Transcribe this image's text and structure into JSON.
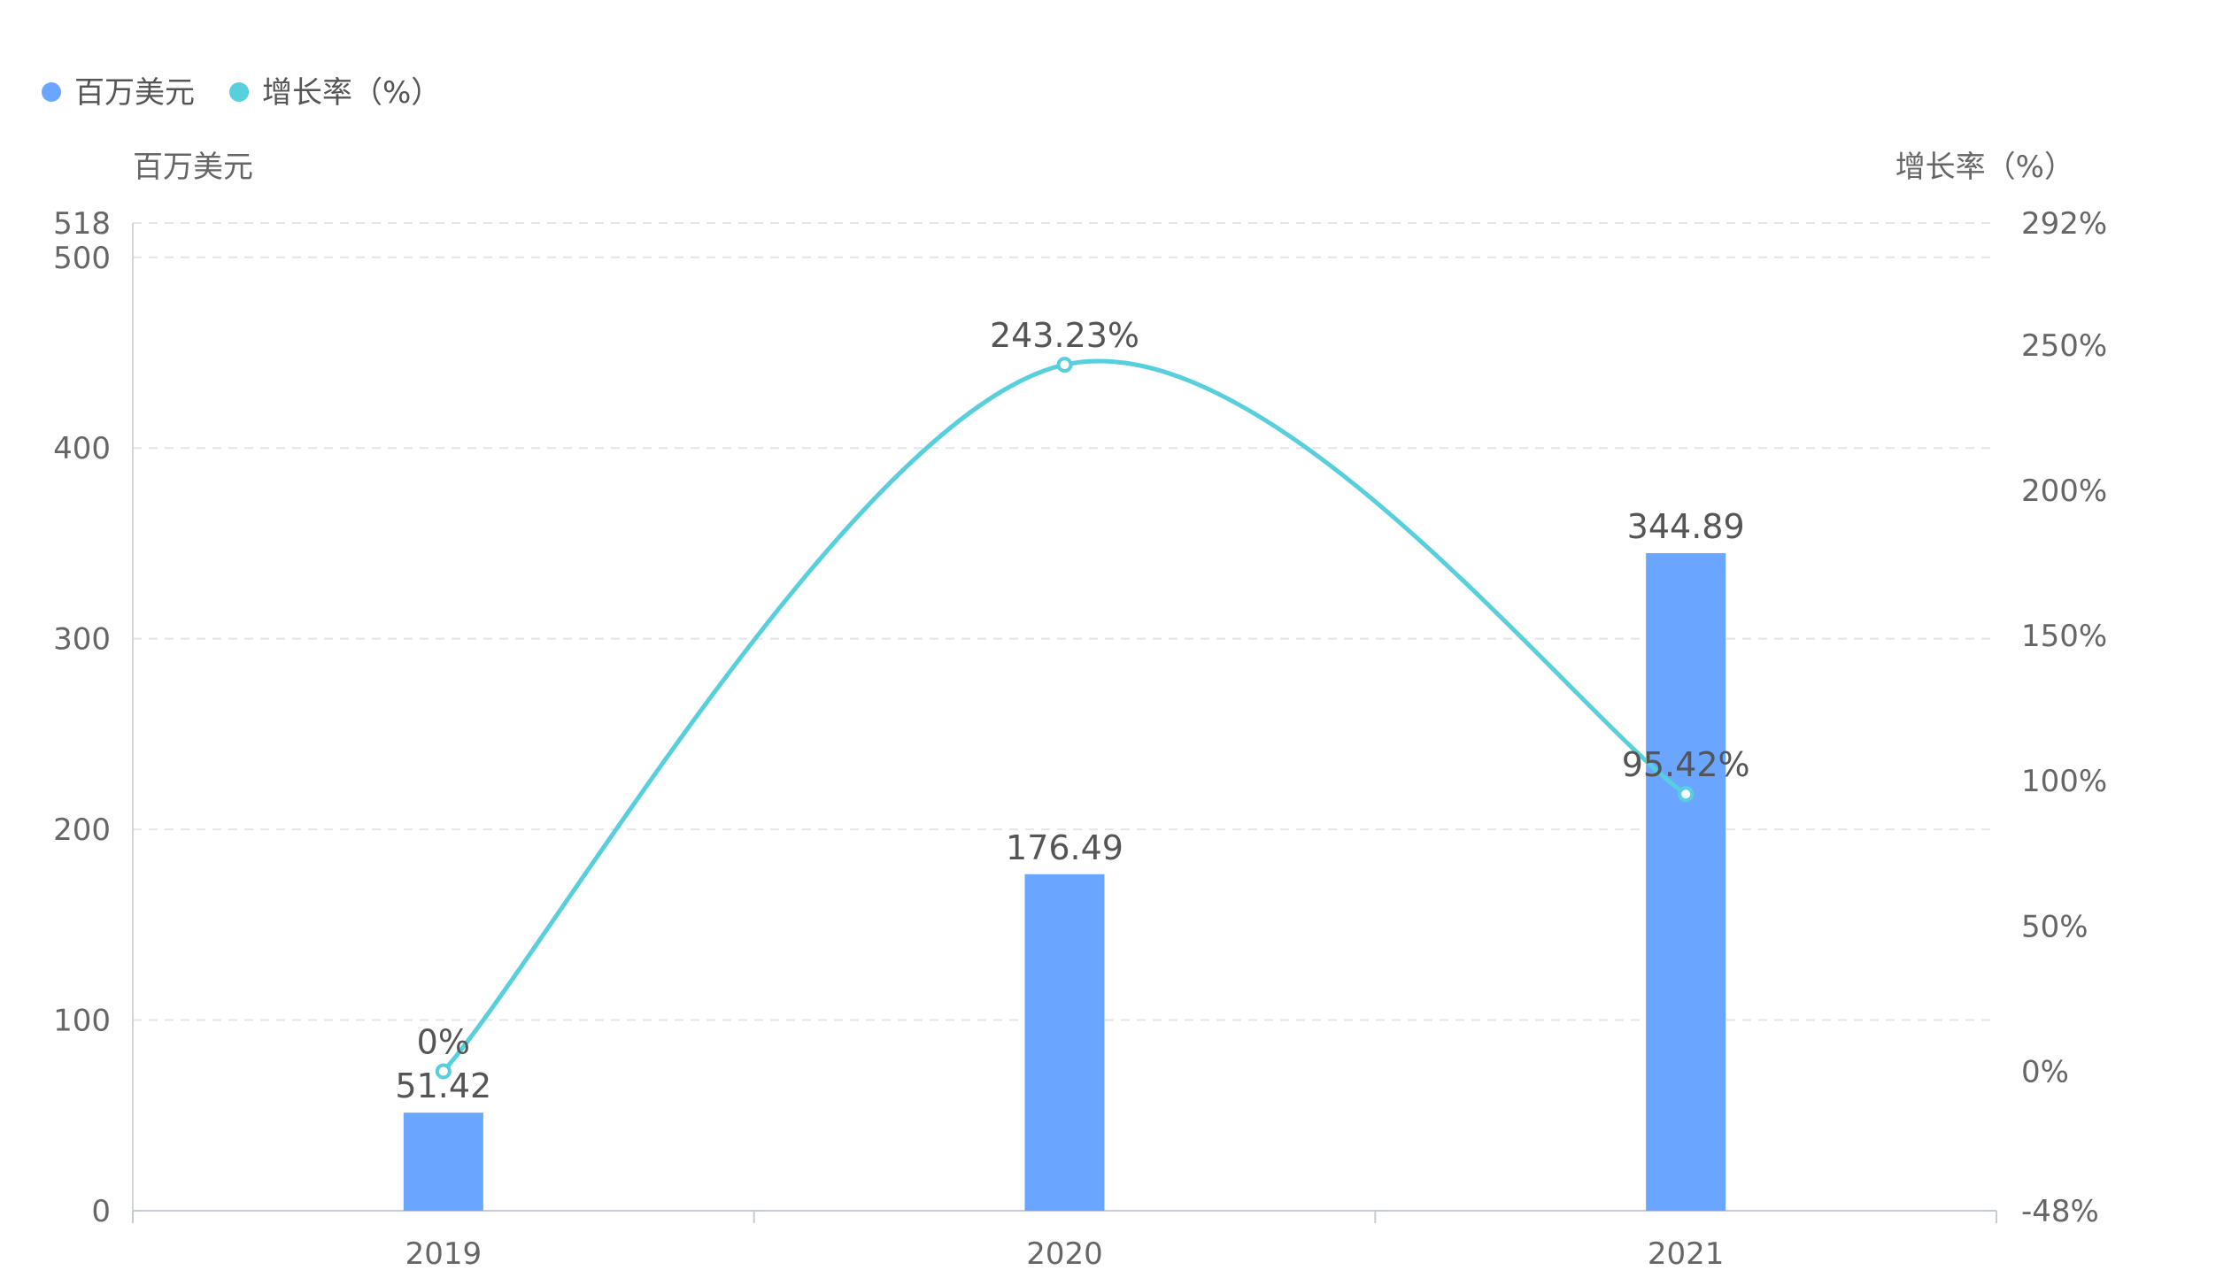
{
  "legend": {
    "items": [
      {
        "label": "百万美元",
        "color": "#6aa5ff"
      },
      {
        "label": "增长率（%）",
        "color": "#58cfdd"
      }
    ]
  },
  "colors": {
    "bar": "#6aa5ff",
    "line": "#58cfdd",
    "grid": "#e2e4ee",
    "axis_text": "#666666",
    "label_text": "#555555"
  },
  "chart_data": {
    "type": "bar",
    "categories": [
      "2019",
      "2020",
      "2021"
    ],
    "series": [
      {
        "name": "百万美元",
        "type": "bar",
        "axis": "left",
        "values": [
          51.42,
          176.49,
          344.89
        ],
        "labels": [
          "51.42",
          "176.49",
          "344.89"
        ]
      },
      {
        "name": "增长率（%）",
        "type": "line",
        "axis": "right",
        "smooth": true,
        "values": [
          0,
          243.23,
          95.42
        ],
        "labels": [
          "0%",
          "243.23%",
          "95.42%"
        ]
      }
    ],
    "ylabel": "百万美元",
    "ylabel_right": "增长率（%）",
    "ylim": [
      0,
      518
    ],
    "ylim_right": [
      -48,
      292
    ],
    "y_ticks": [
      0,
      100,
      200,
      300,
      400,
      500,
      518
    ],
    "y_ticks_right": [
      {
        "value": -48,
        "label": "-48%"
      },
      {
        "value": 0,
        "label": "0%"
      },
      {
        "value": 50,
        "label": "50%"
      },
      {
        "value": 100,
        "label": "100%"
      },
      {
        "value": 150,
        "label": "150%"
      },
      {
        "value": 200,
        "label": "200%"
      },
      {
        "value": 250,
        "label": "250%"
      },
      {
        "value": 292,
        "label": "292%"
      }
    ],
    "grid": true,
    "legend_position": "top-left"
  }
}
